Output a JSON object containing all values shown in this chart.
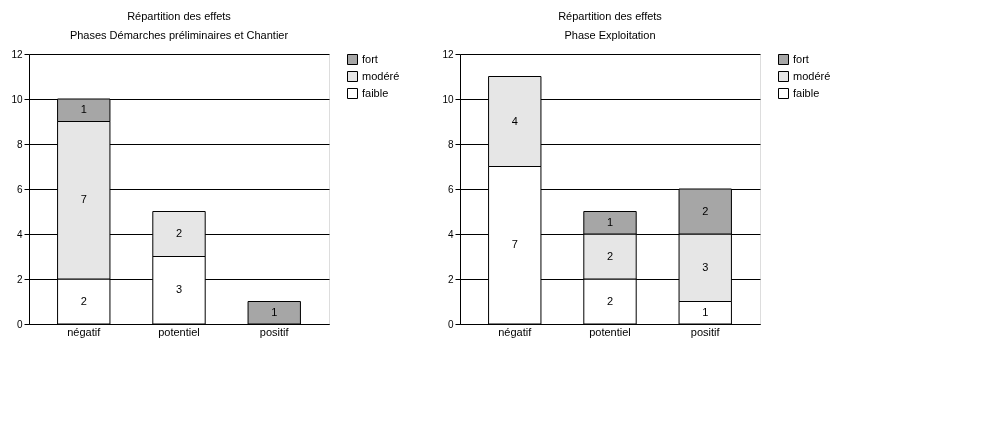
{
  "chart_data": [
    {
      "type": "bar",
      "stacked": true,
      "title": "Répartition des effets",
      "subtitle": "Phases Démarches préliminaires et Chantier",
      "categories": [
        "négatif",
        "potentiel",
        "positif"
      ],
      "series": [
        {
          "name": "faible",
          "color": "#ffffff",
          "values": [
            2,
            3,
            null
          ]
        },
        {
          "name": "modéré",
          "color": "#e6e6e6",
          "values": [
            7,
            2,
            null
          ]
        },
        {
          "name": "fort",
          "color": "#a6a6a6",
          "values": [
            1,
            null,
            1
          ]
        }
      ],
      "ylim": [
        0,
        12
      ],
      "yticks": [
        0,
        2,
        4,
        6,
        8,
        10,
        12
      ],
      "grid": "y",
      "legend": "right",
      "data_labels": true
    },
    {
      "type": "bar",
      "stacked": true,
      "title": "Répartition des effets",
      "subtitle": "Phase Exploitation",
      "categories": [
        "négatif",
        "potentiel",
        "positif"
      ],
      "series": [
        {
          "name": "faible",
          "color": "#ffffff",
          "values": [
            7,
            2,
            1
          ]
        },
        {
          "name": "modéré",
          "color": "#e6e6e6",
          "values": [
            4,
            2,
            3
          ]
        },
        {
          "name": "fort",
          "color": "#a6a6a6",
          "values": [
            null,
            1,
            2
          ]
        }
      ],
      "ylim": [
        0,
        12
      ],
      "yticks": [
        0,
        2,
        4,
        6,
        8,
        10,
        12
      ],
      "grid": "y",
      "legend": "right",
      "data_labels": true
    }
  ]
}
